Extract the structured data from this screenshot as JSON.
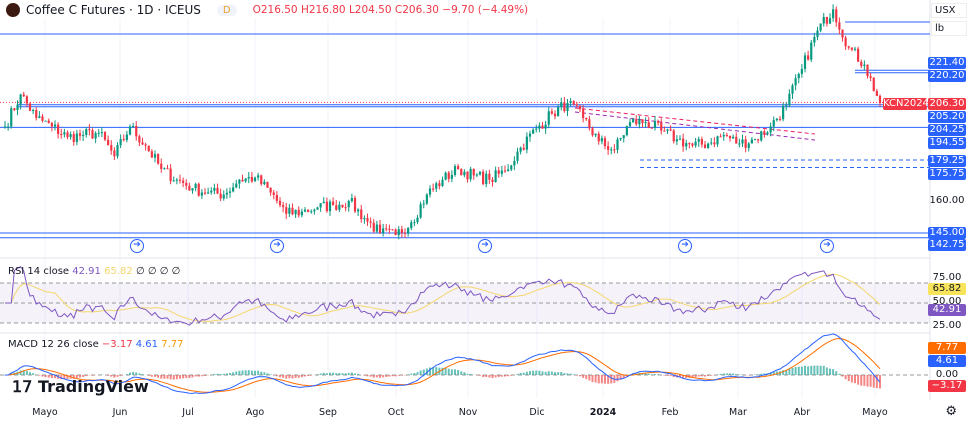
{
  "header": {
    "title": "Coffee C Futures · 1D · ICEUS",
    "badge": "D",
    "open": "O216.50",
    "high": "H216.80",
    "low": "L204.50",
    "close": "C206.30",
    "change": "−9.70 (−4.49%)"
  },
  "scale": {
    "currency": "USX",
    "unit": "lb"
  },
  "price_labels": {
    "l1": "221.40",
    "l2": "220.20",
    "symbol": "KCN2024",
    "last": "206.30",
    "l3": "205.20",
    "l4": "204.25",
    "l5": "194.55",
    "l6": "179.25",
    "l7": "175.75",
    "tick160": "160.00",
    "l8": "145.00",
    "l9": "142.75"
  },
  "colors": {
    "up": "#089981",
    "down": "#f23645",
    "level": "#2962ff",
    "rsi": "#7e57c2",
    "rsi_ma": "#f5d76e",
    "macd": "#2962ff",
    "signal": "#ff6d00"
  },
  "weekly_closes": [
    195,
    210,
    199,
    195,
    190,
    191,
    192,
    181,
    195,
    186,
    175,
    170,
    166,
    164,
    163,
    170,
    171,
    164,
    154,
    155,
    157,
    158,
    160,
    152,
    145,
    144,
    150,
    163,
    170,
    175,
    172,
    170,
    174,
    185,
    194,
    201,
    206,
    199,
    188,
    184,
    197,
    197,
    193,
    189,
    186,
    187,
    191,
    187,
    189,
    195,
    205,
    222,
    240,
    250,
    232,
    224,
    206
  ],
  "rsi": {
    "title": "RSI 14 close",
    "value": "42.91",
    "ma": "65.82",
    "extras": "∅ ∅ ∅ ∅",
    "t75": "75.00",
    "t50": "50.00",
    "t25": "25.00"
  },
  "macd": {
    "title": "MACD 12 26 close",
    "hist": "−3.17",
    "macd": "4.61",
    "signal": "7.77",
    "t0": "0.00"
  },
  "xaxis": [
    "Mayo",
    "Jun",
    "Jul",
    "Ago",
    "Sep",
    "Oct",
    "Nov",
    "Dic",
    "2024",
    "Feb",
    "Mar",
    "Abr",
    "Mayo"
  ],
  "brand": "TradingView"
}
